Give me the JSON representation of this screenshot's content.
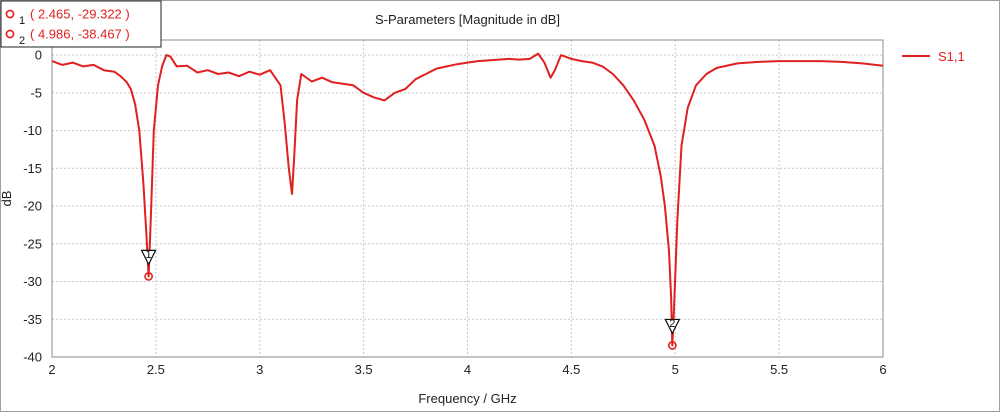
{
  "chart_data": {
    "type": "line",
    "title": "S-Parameters [Magnitude in dB]",
    "xlabel": "Frequency / GHz",
    "ylabel": "dB",
    "xlim": [
      2,
      6
    ],
    "ylim": [
      -40,
      2
    ],
    "x_ticks": [
      "2",
      "2.5",
      "3",
      "3.5",
      "4",
      "4.5",
      "5",
      "5.5",
      "6"
    ],
    "y_ticks": [
      "0",
      "-5",
      "-10",
      "-15",
      "-20",
      "-25",
      "-30",
      "-35",
      "-40"
    ],
    "grid": true,
    "legend_position": "right",
    "series_color": "#e02020",
    "series": [
      {
        "name": "S1,1",
        "x": [
          2.0,
          2.05,
          2.1,
          2.15,
          2.2,
          2.25,
          2.3,
          2.33,
          2.36,
          2.38,
          2.4,
          2.42,
          2.44,
          2.455,
          2.465,
          2.475,
          2.49,
          2.51,
          2.53,
          2.55,
          2.57,
          2.6,
          2.65,
          2.7,
          2.75,
          2.8,
          2.85,
          2.9,
          2.95,
          3.0,
          3.05,
          3.1,
          3.12,
          3.14,
          3.155,
          3.165,
          3.18,
          3.2,
          3.25,
          3.3,
          3.35,
          3.4,
          3.45,
          3.5,
          3.55,
          3.6,
          3.65,
          3.7,
          3.75,
          3.8,
          3.85,
          3.9,
          3.95,
          4.0,
          4.05,
          4.1,
          4.15,
          4.2,
          4.25,
          4.3,
          4.34,
          4.37,
          4.4,
          4.42,
          4.45,
          4.5,
          4.55,
          4.6,
          4.65,
          4.7,
          4.75,
          4.8,
          4.85,
          4.9,
          4.93,
          4.95,
          4.97,
          4.98,
          4.986,
          4.995,
          5.01,
          5.03,
          5.06,
          5.1,
          5.15,
          5.2,
          5.3,
          5.4,
          5.5,
          5.6,
          5.7,
          5.8,
          5.9,
          6.0
        ],
        "y": [
          -0.8,
          -1.3,
          -1.0,
          -1.5,
          -1.3,
          -2.0,
          -2.2,
          -2.8,
          -3.6,
          -4.5,
          -6.5,
          -10.0,
          -17.0,
          -24.0,
          -29.322,
          -22.0,
          -10.0,
          -4.0,
          -1.5,
          0.0,
          -0.2,
          -1.5,
          -1.4,
          -2.3,
          -2.0,
          -2.5,
          -2.3,
          -2.8,
          -2.2,
          -2.6,
          -2.0,
          -4.0,
          -9.0,
          -15.0,
          -18.4,
          -14.0,
          -6.0,
          -2.5,
          -3.5,
          -3.0,
          -3.6,
          -3.8,
          -4.0,
          -5.0,
          -5.6,
          -6.0,
          -5.0,
          -4.5,
          -3.2,
          -2.5,
          -1.8,
          -1.5,
          -1.2,
          -1.0,
          -0.8,
          -0.7,
          -0.6,
          -0.5,
          -0.6,
          -0.5,
          0.2,
          -1.0,
          -3.0,
          -2.0,
          0.0,
          -0.5,
          -0.8,
          -1.0,
          -1.5,
          -2.5,
          -4.0,
          -6.0,
          -8.5,
          -12.0,
          -16.0,
          -20.0,
          -26.0,
          -32.0,
          -38.467,
          -33.0,
          -22.0,
          -12.0,
          -7.0,
          -4.0,
          -2.5,
          -1.7,
          -1.1,
          -0.9,
          -0.8,
          -0.8,
          -0.8,
          -0.9,
          -1.1,
          -1.4
        ]
      }
    ],
    "markers": [
      {
        "id": "1",
        "x": 2.465,
        "y": -29.322,
        "readout": "( 2.465, -29.322 )"
      },
      {
        "id": "2",
        "x": 4.986,
        "y": -38.467,
        "readout": "( 4.986, -38.467 )"
      }
    ]
  }
}
